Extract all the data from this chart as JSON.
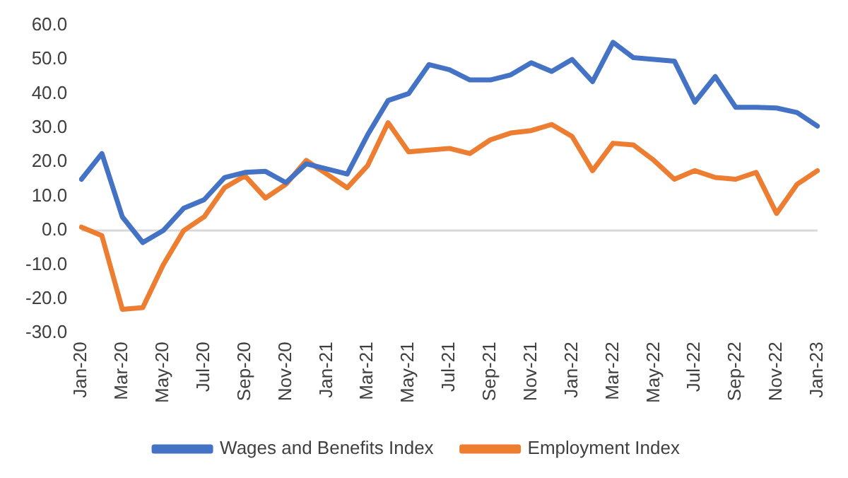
{
  "chart_data": {
    "type": "line",
    "categories": [
      "Jan-20",
      null,
      "Mar-20",
      null,
      "May-20",
      null,
      "Jul-20",
      null,
      "Sep-20",
      null,
      "Nov-20",
      null,
      "Jan-21",
      null,
      "Mar-21",
      null,
      "May-21",
      null,
      "Jul-21",
      null,
      "Sep-21",
      null,
      "Nov-21",
      null,
      "Jan-22",
      null,
      "Mar-22",
      null,
      "May-22",
      null,
      "Jul-22",
      null,
      "Sep-22",
      null,
      "Nov-22",
      null,
      "Jan-23"
    ],
    "series": [
      {
        "name": "Wages and Benefits Index",
        "color": "#4472c4",
        "values": [
          15,
          22.5,
          4,
          -3.5,
          0,
          6.5,
          9,
          15.5,
          17,
          17.3,
          14,
          19.5,
          18,
          16.5,
          28,
          38,
          40,
          48.5,
          47,
          44,
          44,
          45.5,
          49,
          46.5,
          50,
          43.5,
          55,
          50.5,
          50,
          49.5,
          37.5,
          45,
          36,
          36,
          35.8,
          34.5,
          30.5
        ]
      },
      {
        "name": "Employment Index",
        "color": "#ed7d31",
        "values": [
          1,
          -1.5,
          -23,
          -22.5,
          -10,
          0,
          4,
          12.5,
          16,
          9.5,
          13.5,
          20.5,
          16.5,
          12.5,
          19,
          31.5,
          23,
          23.5,
          24,
          22.5,
          26.5,
          28.5,
          29.2,
          31,
          27.5,
          17.5,
          25.5,
          25,
          20.5,
          15,
          17.5,
          15.5,
          15,
          17,
          5,
          13.5,
          17.5
        ]
      }
    ],
    "ylim": [
      -30,
      60
    ],
    "yticks": [
      {
        "value": -30,
        "label": "-30.0"
      },
      {
        "value": -20,
        "label": "-20.0"
      },
      {
        "value": -10,
        "label": "-10.0"
      },
      {
        "value": 0,
        "label": "0.0"
      },
      {
        "value": 10,
        "label": "10.0"
      },
      {
        "value": 20,
        "label": "20.0"
      },
      {
        "value": 30,
        "label": "30.0"
      },
      {
        "value": 40,
        "label": "40.0"
      },
      {
        "value": 50,
        "label": "50.0"
      },
      {
        "value": 60,
        "label": "60.0"
      }
    ],
    "grid": false,
    "ref_lines": [
      {
        "axis": "y",
        "value": 0,
        "color": "#d9d9d9"
      }
    ],
    "legend": "bottom",
    "marker": "none",
    "line_style": "solid"
  }
}
